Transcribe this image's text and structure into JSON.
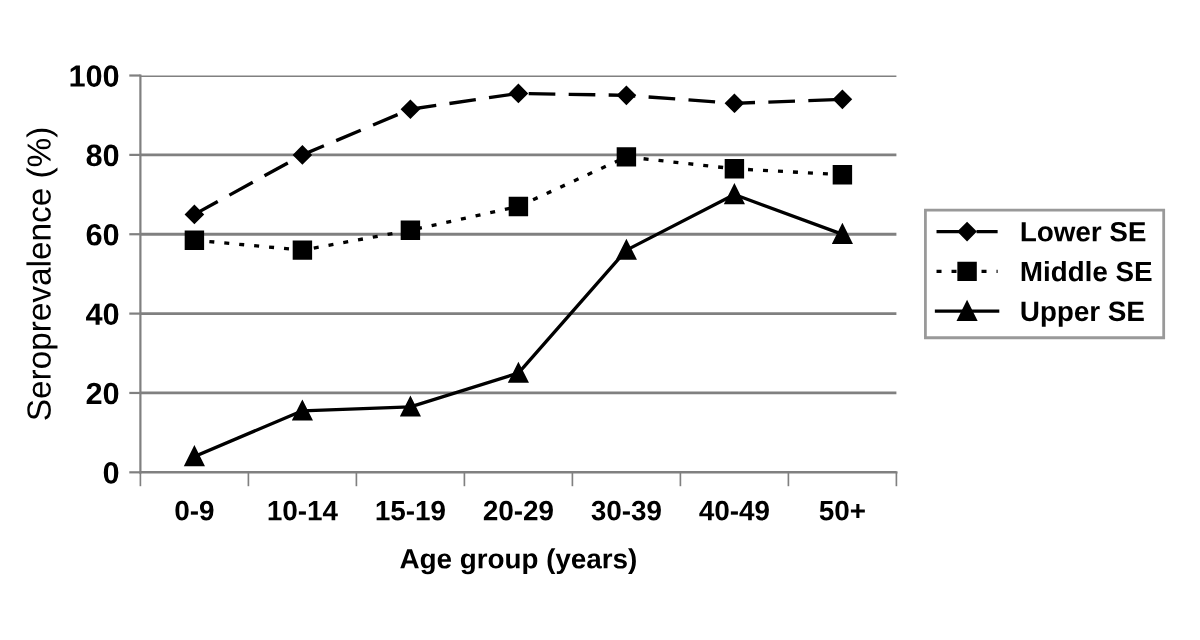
{
  "chart_data": {
    "type": "line",
    "xlabel": "Age group (years)",
    "ylabel": "Seroprevalence (%)",
    "categories": [
      "0-9",
      "10-14",
      "15-19",
      "20-29",
      "30-39",
      "40-49",
      "50+"
    ],
    "series": [
      {
        "name": "Lower SE",
        "color": "#000000",
        "marker": "diamond",
        "line_style": "dashed",
        "values": [
          65,
          80,
          91.5,
          95.5,
          95,
          93,
          94
        ]
      },
      {
        "name": "Middle SE",
        "color": "#000000",
        "marker": "square",
        "line_style": "dotted",
        "values": [
          58.5,
          56,
          61,
          67,
          79.5,
          76.5,
          75
        ]
      },
      {
        "name": "Upper SE",
        "color": "#000000",
        "marker": "triangle",
        "line_style": "solid",
        "values": [
          4,
          15.5,
          16.5,
          25,
          56,
          70,
          60
        ]
      }
    ],
    "ylim": [
      0,
      100
    ],
    "yticks": [
      0,
      20,
      40,
      60,
      80,
      100
    ],
    "grid": "y",
    "legend": "right"
  }
}
